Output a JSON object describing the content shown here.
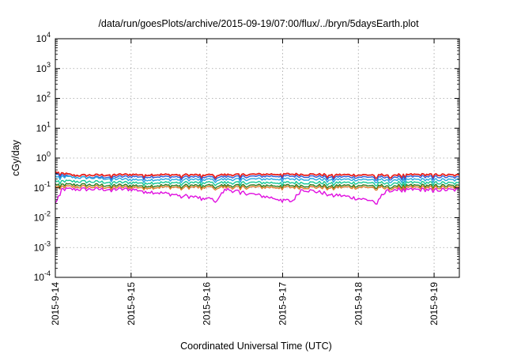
{
  "chart_data": {
    "type": "line",
    "title": "/data/run/goesPlots/archive/2015-09-19/07:00/flux/../bryn/5daysEarth.plot",
    "xlabel": "Coordinated Universal Time (UTC)",
    "ylabel": "cGy/day",
    "yscale": "log",
    "ylim": [
      0.0001,
      10000
    ],
    "y_ticks": [
      {
        "value": 0.0001,
        "base": "10",
        "exp": "-4"
      },
      {
        "value": 0.001,
        "base": "10",
        "exp": "-3"
      },
      {
        "value": 0.01,
        "base": "10",
        "exp": "-2"
      },
      {
        "value": 0.1,
        "base": "10",
        "exp": "-1"
      },
      {
        "value": 1,
        "base": "10",
        "exp": "0"
      },
      {
        "value": 10,
        "base": "10",
        "exp": "1"
      },
      {
        "value": 100,
        "base": "10",
        "exp": "2"
      },
      {
        "value": 1000,
        "base": "10",
        "exp": "3"
      },
      {
        "value": 10000,
        "base": "10",
        "exp": "4"
      }
    ],
    "xlim": [
      "2015-09-14T00:00",
      "2015-09-19T08:00"
    ],
    "x_ticks": [
      "2015-9-14",
      "2015-9-15",
      "2015-9-16",
      "2015-9-17",
      "2015-9-18",
      "2015-9-19"
    ],
    "grid": true,
    "series": [
      {
        "color": "#e8201c",
        "level": 0.27,
        "values": [
          {
            "x": "2015-09-14T00:00",
            "y": 0.34
          },
          {
            "x": "2015-09-14T06:00",
            "y": 0.26
          },
          {
            "x": "2015-09-15T00:00",
            "y": 0.28
          },
          {
            "x": "2015-09-16T00:00",
            "y": 0.27
          },
          {
            "x": "2015-09-17T00:00",
            "y": 0.29
          },
          {
            "x": "2015-09-18T00:00",
            "y": 0.27
          },
          {
            "x": "2015-09-19T00:00",
            "y": 0.28
          },
          {
            "x": "2015-09-19T08:00",
            "y": 0.26
          }
        ]
      },
      {
        "color": "#2b60d8",
        "level": 0.23,
        "values": [
          {
            "x": "2015-09-14T00:00",
            "y": 0.3
          },
          {
            "x": "2015-09-14T06:00",
            "y": 0.22
          },
          {
            "x": "2015-09-15T00:00",
            "y": 0.24
          },
          {
            "x": "2015-09-16T00:00",
            "y": 0.23
          },
          {
            "x": "2015-09-17T00:00",
            "y": 0.25
          },
          {
            "x": "2015-09-18T00:00",
            "y": 0.23
          },
          {
            "x": "2015-09-19T00:00",
            "y": 0.24
          },
          {
            "x": "2015-09-19T08:00",
            "y": 0.22
          }
        ]
      },
      {
        "color": "#2aa8e0",
        "level": 0.19,
        "values": [
          {
            "x": "2015-09-14T00:00",
            "y": 0.24
          },
          {
            "x": "2015-09-15T00:00",
            "y": 0.19
          },
          {
            "x": "2015-09-16T00:00",
            "y": 0.19
          },
          {
            "x": "2015-09-17T00:00",
            "y": 0.2
          },
          {
            "x": "2015-09-18T00:00",
            "y": 0.19
          },
          {
            "x": "2015-09-19T00:00",
            "y": 0.19
          },
          {
            "x": "2015-09-19T08:00",
            "y": 0.18
          }
        ]
      },
      {
        "color": "#14c896",
        "level": 0.15,
        "values": [
          {
            "x": "2015-09-14T00:00",
            "y": 0.17
          },
          {
            "x": "2015-09-15T00:00",
            "y": 0.15
          },
          {
            "x": "2015-09-16T00:00",
            "y": 0.15
          },
          {
            "x": "2015-09-17T00:00",
            "y": 0.15
          },
          {
            "x": "2015-09-18T00:00",
            "y": 0.15
          },
          {
            "x": "2015-09-19T00:00",
            "y": 0.15
          },
          {
            "x": "2015-09-19T08:00",
            "y": 0.14
          }
        ]
      },
      {
        "color": "#2e7d20",
        "level": 0.12,
        "values": [
          {
            "x": "2015-09-14T00:00",
            "y": 0.13
          },
          {
            "x": "2015-09-15T00:00",
            "y": 0.12
          },
          {
            "x": "2015-09-16T00:00",
            "y": 0.12
          },
          {
            "x": "2015-09-17T00:00",
            "y": 0.12
          },
          {
            "x": "2015-09-18T00:00",
            "y": 0.12
          },
          {
            "x": "2015-09-19T00:00",
            "y": 0.12
          },
          {
            "x": "2015-09-19T08:00",
            "y": 0.115
          }
        ]
      },
      {
        "color": "#e07a2a",
        "level": 0.105,
        "values": [
          {
            "x": "2015-09-14T00:00",
            "y": 0.11
          },
          {
            "x": "2015-09-15T00:00",
            "y": 0.105
          },
          {
            "x": "2015-09-16T00:00",
            "y": 0.105
          },
          {
            "x": "2015-09-17T00:00",
            "y": 0.105
          },
          {
            "x": "2015-09-18T00:00",
            "y": 0.105
          },
          {
            "x": "2015-09-19T00:00",
            "y": 0.105
          },
          {
            "x": "2015-09-19T08:00",
            "y": 0.1
          }
        ]
      },
      {
        "color": "#e010e0",
        "level": 0.09,
        "values": [
          {
            "x": "2015-09-14T00:00",
            "y": 0.03
          },
          {
            "x": "2015-09-14T02:00",
            "y": 0.09
          },
          {
            "x": "2015-09-15T00:00",
            "y": 0.09
          },
          {
            "x": "2015-09-16T03:00",
            "y": 0.04
          },
          {
            "x": "2015-09-16T06:00",
            "y": 0.09
          },
          {
            "x": "2015-09-17T03:00",
            "y": 0.035
          },
          {
            "x": "2015-09-17T06:00",
            "y": 0.09
          },
          {
            "x": "2015-09-18T06:00",
            "y": 0.035
          },
          {
            "x": "2015-09-18T09:00",
            "y": 0.09
          },
          {
            "x": "2015-09-19T08:00",
            "y": 0.085
          }
        ]
      }
    ]
  }
}
